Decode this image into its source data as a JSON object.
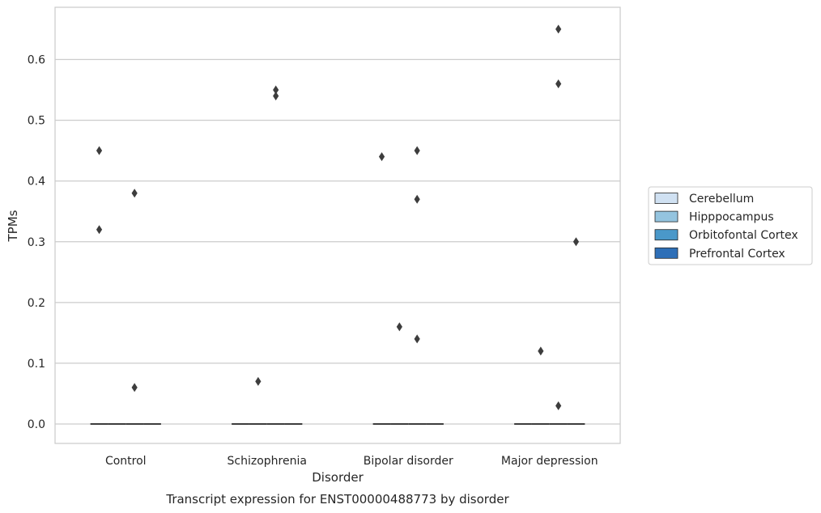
{
  "chart_data": {
    "type": "box",
    "title": "",
    "caption": "Transcript expression for ENST00000488773 by disorder",
    "xlabel": "Disorder",
    "ylabel": "TPMs",
    "categories": [
      "Control",
      "Schizophrenia",
      "Bipolar disorder",
      "Major depression"
    ],
    "ylim": [
      -0.032,
      0.686
    ],
    "yticks": [
      0.0,
      0.1,
      0.2,
      0.3,
      0.4,
      0.5,
      0.6
    ],
    "ytick_labels": [
      "0.0",
      "0.1",
      "0.2",
      "0.3",
      "0.4",
      "0.5",
      "0.6"
    ],
    "grid": "horizontal",
    "legend_position": "right, outside",
    "series": [
      {
        "name": "Cerebellum",
        "color": "#d0e1f2",
        "median": [
          0,
          0,
          0,
          0
        ],
        "outliers": [
          [
            0.45,
            0.32
          ],
          [],
          [
            0.44
          ],
          []
        ]
      },
      {
        "name": "Hipppocampus",
        "color": "#94c4df",
        "median": [
          0,
          0,
          0,
          0
        ],
        "outliers": [
          [],
          [
            0.07
          ],
          [
            0.16
          ],
          [
            0.12
          ]
        ]
      },
      {
        "name": "Orbitofontal Cortex",
        "color": "#4a98c9",
        "median": [
          0,
          0,
          0,
          0
        ],
        "outliers": [
          [
            0.38,
            0.06
          ],
          [
            0.55,
            0.54
          ],
          [
            0.45,
            0.37,
            0.14
          ],
          [
            0.65,
            0.56,
            0.03
          ]
        ]
      },
      {
        "name": "Prefrontal Cortex",
        "color": "#2e6fb7",
        "median": [
          0,
          0,
          0,
          0
        ],
        "outliers": [
          [],
          [],
          [],
          [
            0.3
          ]
        ]
      }
    ]
  }
}
